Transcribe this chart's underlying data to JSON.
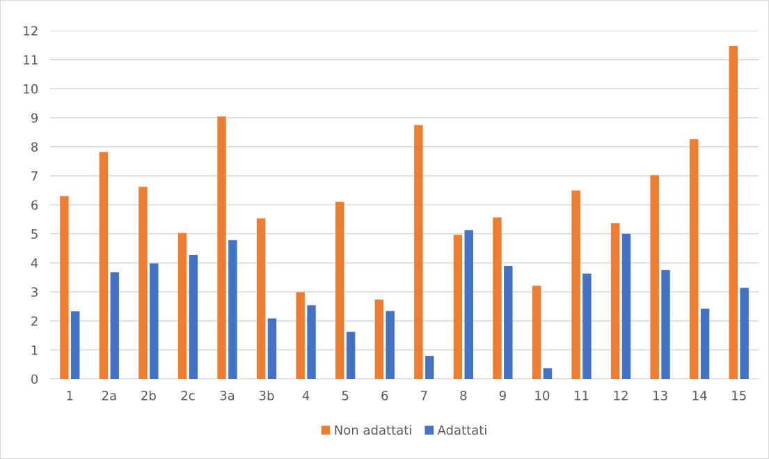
{
  "chart_data": {
    "type": "bar",
    "categories": [
      "1",
      "2a",
      "2b",
      "2c",
      "3a",
      "3b",
      "4",
      "5",
      "6",
      "7",
      "8",
      "9",
      "10",
      "11",
      "12",
      "13",
      "14",
      "15"
    ],
    "series": [
      {
        "name": "Non adattati",
        "color": "#ed7d31",
        "values": [
          6.3,
          7.82,
          6.62,
          5.03,
          9.04,
          5.53,
          2.99,
          6.1,
          2.73,
          8.75,
          4.96,
          5.56,
          3.21,
          6.49,
          5.37,
          7.02,
          8.26,
          11.47
        ]
      },
      {
        "name": "Adattati",
        "color": "#4472c4",
        "values": [
          2.33,
          3.67,
          3.98,
          4.27,
          4.78,
          2.08,
          2.54,
          1.62,
          2.34,
          0.79,
          5.13,
          3.89,
          0.37,
          3.63,
          5.0,
          3.75,
          2.42,
          3.14
        ]
      }
    ],
    "ylim": [
      0,
      12
    ],
    "yticks": [
      0,
      1,
      2,
      3,
      4,
      5,
      6,
      7,
      8,
      9,
      10,
      11,
      12
    ],
    "grid": "y",
    "legend": "bottom"
  }
}
